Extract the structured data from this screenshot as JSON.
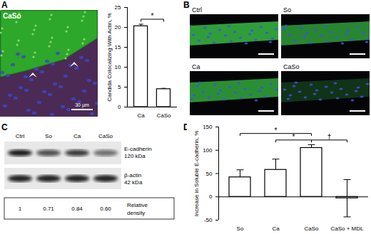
{
  "panels": {
    "A": {
      "label": "A",
      "image_label": "CaSo",
      "scale_bar": "30 µm"
    },
    "B": {
      "label": "B",
      "images": [
        "Ctrl",
        "So",
        "Ca",
        "CaSo"
      ]
    },
    "C": {
      "label": "C",
      "lanes": [
        "Ctrl",
        "So",
        "Ca",
        "CaSo"
      ],
      "bands": [
        {
          "name": "E-cadherin",
          "size": "120 kDa"
        },
        {
          "name": "β-actin",
          "size": "42 kDa"
        }
      ],
      "relative_density": {
        "label": "Relative density",
        "values": [
          "1",
          "0.71",
          "0.84",
          "0.60"
        ]
      }
    },
    "D": {
      "label": "D"
    }
  },
  "chart_data": [
    {
      "type": "bar",
      "categories": [
        "Ca",
        "CaSo"
      ],
      "values": [
        20.3,
        4.5
      ],
      "errors": [
        0.5,
        0.2
      ],
      "ylabel": "Candida Colocalizing With Actin, %",
      "ylim": [
        0,
        25
      ],
      "yticks": [
        0,
        5,
        10,
        15,
        20,
        25
      ],
      "color": "#ffffff",
      "significance": [
        {
          "from": "Ca",
          "to": "CaSo",
          "label": "*"
        }
      ]
    },
    {
      "type": "bar",
      "categories": [
        "So",
        "Ca",
        "CaSo",
        "CaSo + MDL"
      ],
      "values": [
        42,
        58,
        105,
        -3
      ],
      "errors": [
        16,
        23,
        7,
        40
      ],
      "ylabel": "Increase in Soluble E-cadherin, %",
      "ylim": [
        -50,
        150
      ],
      "yticks": [
        -50,
        0,
        50,
        100,
        150
      ],
      "color": "#ffffff",
      "significance": [
        {
          "from": "So",
          "to": "CaSo",
          "label": "*"
        },
        {
          "from": "Ca",
          "to": "CaSo",
          "label": "*"
        },
        {
          "from": "CaSo",
          "to": "CaSo + MDL",
          "label": "†"
        }
      ]
    }
  ]
}
